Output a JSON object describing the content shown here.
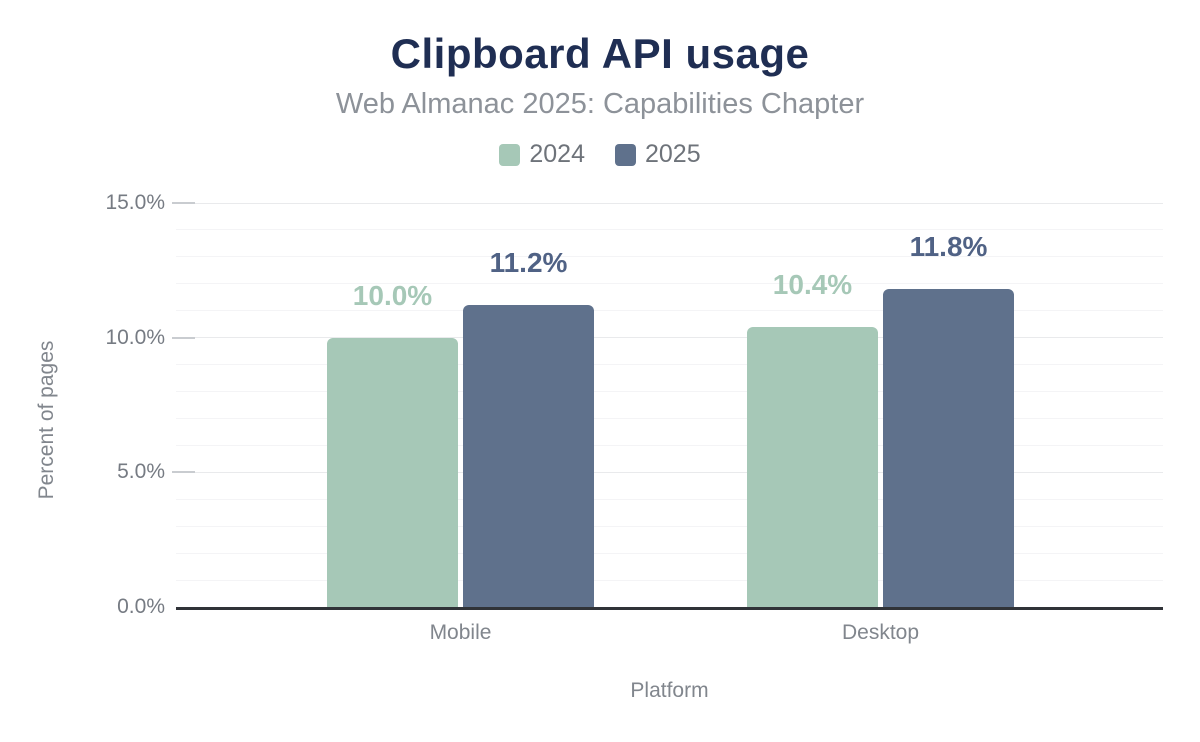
{
  "chart_data": {
    "type": "bar",
    "title": "Clipboard API usage",
    "subtitle": "Web Almanac 2025: Capabilities Chapter",
    "xlabel": "Platform",
    "ylabel": "Percent of pages",
    "categories": [
      "Mobile",
      "Desktop"
    ],
    "series": [
      {
        "name": "2024",
        "values": [
          10.0,
          10.4
        ],
        "labels": [
          "10.0%",
          "10.4%"
        ],
        "color": "#a6c8b7",
        "label_color": "#a6c8b7"
      },
      {
        "name": "2025",
        "values": [
          11.2,
          11.8
        ],
        "labels": [
          "11.2%",
          "11.8%"
        ],
        "color": "#5f718c",
        "label_color": "#506285"
      }
    ],
    "y_axis": {
      "min": 0,
      "max": 15,
      "major_step": 5,
      "minor_step": 1,
      "tick_labels": [
        "0.0%",
        "5.0%",
        "10.0%",
        "15.0%"
      ]
    },
    "grid": "horizontal",
    "legend_position": "top",
    "colors": {
      "title": "#1f2e53",
      "subtitle": "#8d9299",
      "axis_line": "#303338",
      "tick_text": "#767b83",
      "axis_title_text": "#81868d",
      "grid_minor": "#f4f4f6",
      "grid_major": "#e9eaec",
      "background": "#ffffff"
    }
  }
}
